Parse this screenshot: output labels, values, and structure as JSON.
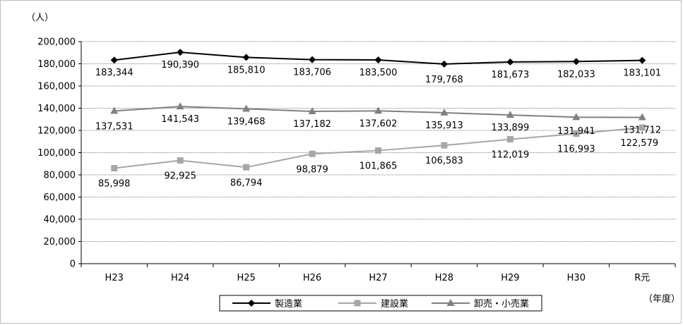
{
  "chart_data": {
    "type": "line",
    "y_unit_label": "（人）",
    "x_unit_label": "（年度）",
    "categories": [
      "H23",
      "H24",
      "H25",
      "H26",
      "H27",
      "H28",
      "H29",
      "H30",
      "R元"
    ],
    "ylim": [
      0,
      200000
    ],
    "y_ticks": [
      {
        "value": 0,
        "label": "0"
      },
      {
        "value": 20000,
        "label": "20,000"
      },
      {
        "value": 40000,
        "label": "40,000"
      },
      {
        "value": 60000,
        "label": "60,000"
      },
      {
        "value": 80000,
        "label": "80,000"
      },
      {
        "value": 100000,
        "label": "100,000"
      },
      {
        "value": 120000,
        "label": "120,000"
      },
      {
        "value": 140000,
        "label": "140,000"
      },
      {
        "value": 160000,
        "label": "160,000"
      },
      {
        "value": 180000,
        "label": "180,000"
      },
      {
        "value": 200000,
        "label": "200,000"
      }
    ],
    "grid": true,
    "legend_position": "bottom",
    "series": [
      {
        "name": "製造業",
        "color": "#000000",
        "marker": "diamond",
        "values": [
          183344,
          190390,
          185810,
          183706,
          183500,
          179768,
          181673,
          182033,
          183101
        ],
        "labels": [
          "183,344",
          "190,390",
          "185,810",
          "183,706",
          "183,500",
          "179,768",
          "181,673",
          "182,033",
          "183,101"
        ]
      },
      {
        "name": "建設業",
        "color": "#a6a6a6",
        "marker": "square",
        "values": [
          85998,
          92925,
          86794,
          98879,
          101865,
          106583,
          112019,
          116993,
          122579
        ],
        "labels": [
          "85,998",
          "92,925",
          "86,794",
          "98,879",
          "101,865",
          "106,583",
          "112,019",
          "116,993",
          "122,579"
        ]
      },
      {
        "name": "卸売・小売業",
        "color": "#808080",
        "marker": "triangle",
        "values": [
          137531,
          141543,
          139468,
          137182,
          137602,
          135913,
          133899,
          131941,
          131712
        ],
        "labels": [
          "137,531",
          "141,543",
          "139,468",
          "137,182",
          "137,602",
          "135,913",
          "133,899",
          "131,941",
          "131,712"
        ]
      }
    ]
  }
}
